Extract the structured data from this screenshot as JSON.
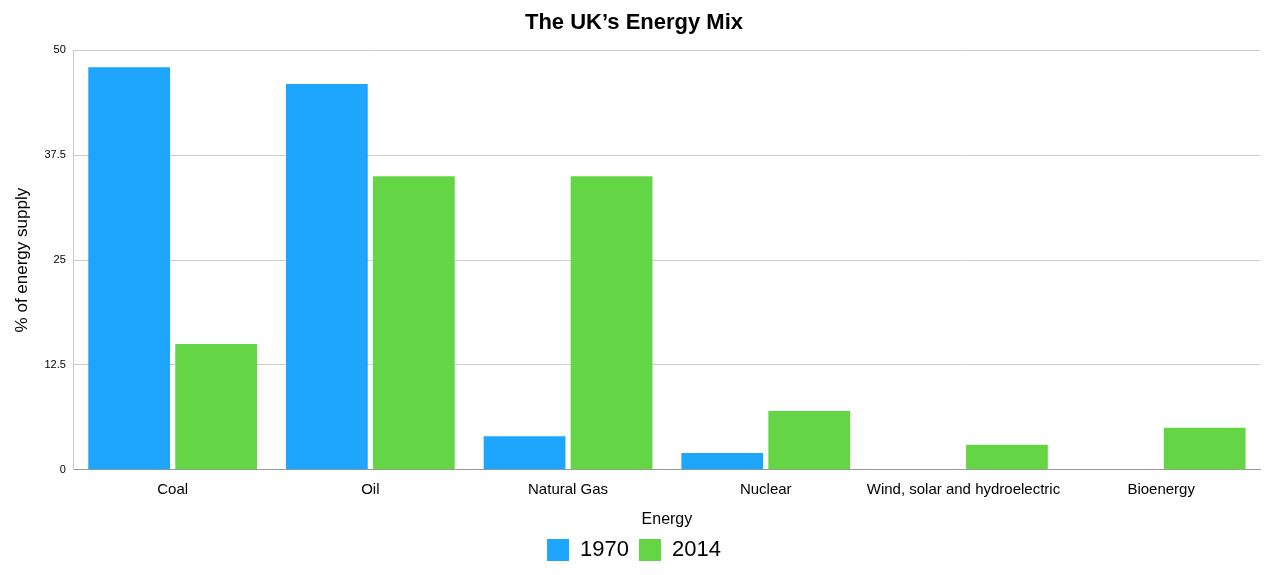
{
  "chart_data": {
    "type": "bar",
    "title": "The UK’s Energy Mix",
    "x_label": "Energy",
    "y_label": "% of energy supply",
    "categories": [
      "Coal",
      "Oil",
      "Natural Gas",
      "Nuclear",
      "Wind, solar and hydroelectric",
      "Bioenergy"
    ],
    "series": [
      {
        "name": "1970",
        "color": "#1ea5fc",
        "values": [
          48,
          46,
          4,
          2,
          0,
          0
        ]
      },
      {
        "name": "2014",
        "color": "#64d646",
        "values": [
          15,
          35,
          35,
          7,
          3,
          5
        ]
      }
    ],
    "ylim": [
      0,
      50
    ],
    "yticks": [
      0,
      12.5,
      25,
      37.5,
      50
    ],
    "grid": true,
    "legend": "bottom"
  }
}
